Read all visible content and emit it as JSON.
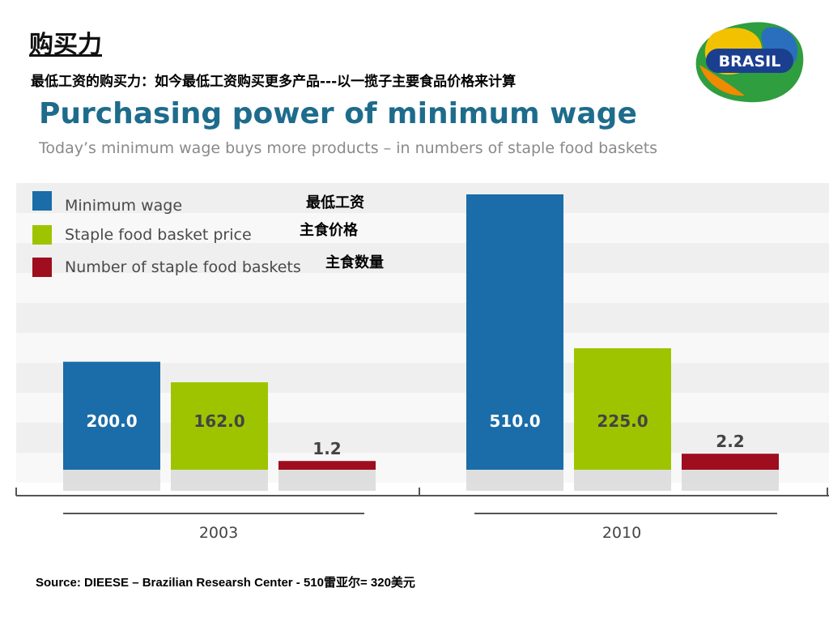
{
  "slide": {
    "title": "购买力",
    "subtitle": "最低工资的购买力：如今最低工资购买更多产品---以一揽子主要食品价格来计算",
    "source": "Source: DIEESE – Brazilian Researsh Center  - 510雷亚尔= 320美元"
  },
  "logo": {
    "text": "BRASIL"
  },
  "chart_data": {
    "type": "bar",
    "title": "Purchasing power of minimum wage",
    "subtitle": "Today’s minimum wage buys more products – in numbers of staple food baskets",
    "categories": [
      "2003",
      "2010"
    ],
    "series": [
      {
        "name": "Minimum wage",
        "name_cn": "最低工资",
        "color": "#1a6da8",
        "values": [
          200.0,
          510.0
        ],
        "labels": [
          "200.0",
          "510.0"
        ]
      },
      {
        "name": "Staple food basket price",
        "name_cn": "主食价格",
        "color": "#9ec400",
        "values": [
          162.0,
          225.0
        ],
        "labels": [
          "162.0",
          "225.0"
        ]
      },
      {
        "name": "Number of staple food baskets",
        "name_cn": "主食数量",
        "color": "#9e0e1e",
        "values": [
          1.2,
          2.2
        ],
        "labels": [
          "1.2",
          "2.2"
        ]
      }
    ],
    "grid": true,
    "legend_position": "top-left"
  }
}
